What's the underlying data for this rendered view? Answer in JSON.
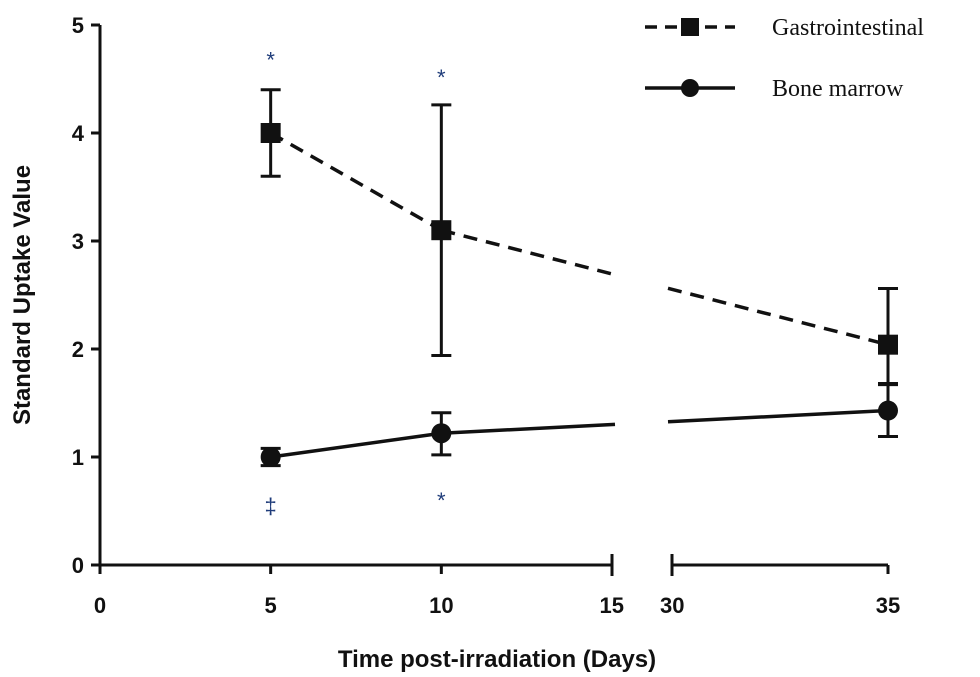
{
  "chart_data": {
    "type": "line",
    "title": "",
    "xlabel": "Time post-irradiation (Days)",
    "ylabel": "Standard Uptake Value",
    "ylim": [
      0,
      5
    ],
    "yticks": [
      "0",
      "1",
      "2",
      "3",
      "4",
      "5"
    ],
    "x_axis_broken": true,
    "x_segments": [
      {
        "range": [
          0,
          15
        ],
        "ticks": [
          "0",
          "5",
          "10",
          "15"
        ]
      },
      {
        "range": [
          30,
          35
        ],
        "ticks": [
          "30",
          "35"
        ]
      }
    ],
    "grid": false,
    "legend_position": "top-right",
    "series": [
      {
        "name": "Gastrointestinal",
        "line_style": "dashed",
        "marker": "square",
        "color": "#111111",
        "points": [
          {
            "x": 5,
            "y": 4.0,
            "err_low": 3.6,
            "err_high": 4.4
          },
          {
            "x": 10,
            "y": 3.1,
            "err_low": 1.94,
            "err_high": 4.26
          },
          {
            "x": 35,
            "y": 2.04,
            "err_low": 1.68,
            "err_high": 2.56
          }
        ]
      },
      {
        "name": "Bone marrow",
        "line_style": "solid",
        "marker": "circle",
        "color": "#111111",
        "points": [
          {
            "x": 5,
            "y": 1.0,
            "err_low": 0.92,
            "err_high": 1.08
          },
          {
            "x": 10,
            "y": 1.22,
            "err_low": 1.02,
            "err_high": 1.41
          },
          {
            "x": 35,
            "y": 1.43,
            "err_low": 1.19,
            "err_high": 1.67
          }
        ]
      }
    ],
    "annotations": [
      {
        "text": "*",
        "x": 5,
        "y": 4.68
      },
      {
        "text": "*",
        "x": 10,
        "y": 4.52
      },
      {
        "text": "‡",
        "x": 5,
        "y": 0.55
      },
      {
        "text": "*",
        "x": 10,
        "y": 0.6
      }
    ],
    "accent_annotation_color": "#1f3c7a"
  }
}
